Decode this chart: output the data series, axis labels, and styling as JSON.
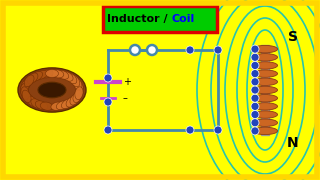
{
  "bg_color": "#FFFF00",
  "title_bg": "#00CC00",
  "title_border": "#DD0000",
  "circuit_color": "#4488AA",
  "dot_color": "#2244BB",
  "field_color": "#00BBCC",
  "N_label": "N",
  "S_label": "S",
  "coil_copper": "#CC6622",
  "coil_dark": "#8B3A10",
  "battery_color": "#CC44CC",
  "magnet_gray": "#BBBBBB"
}
